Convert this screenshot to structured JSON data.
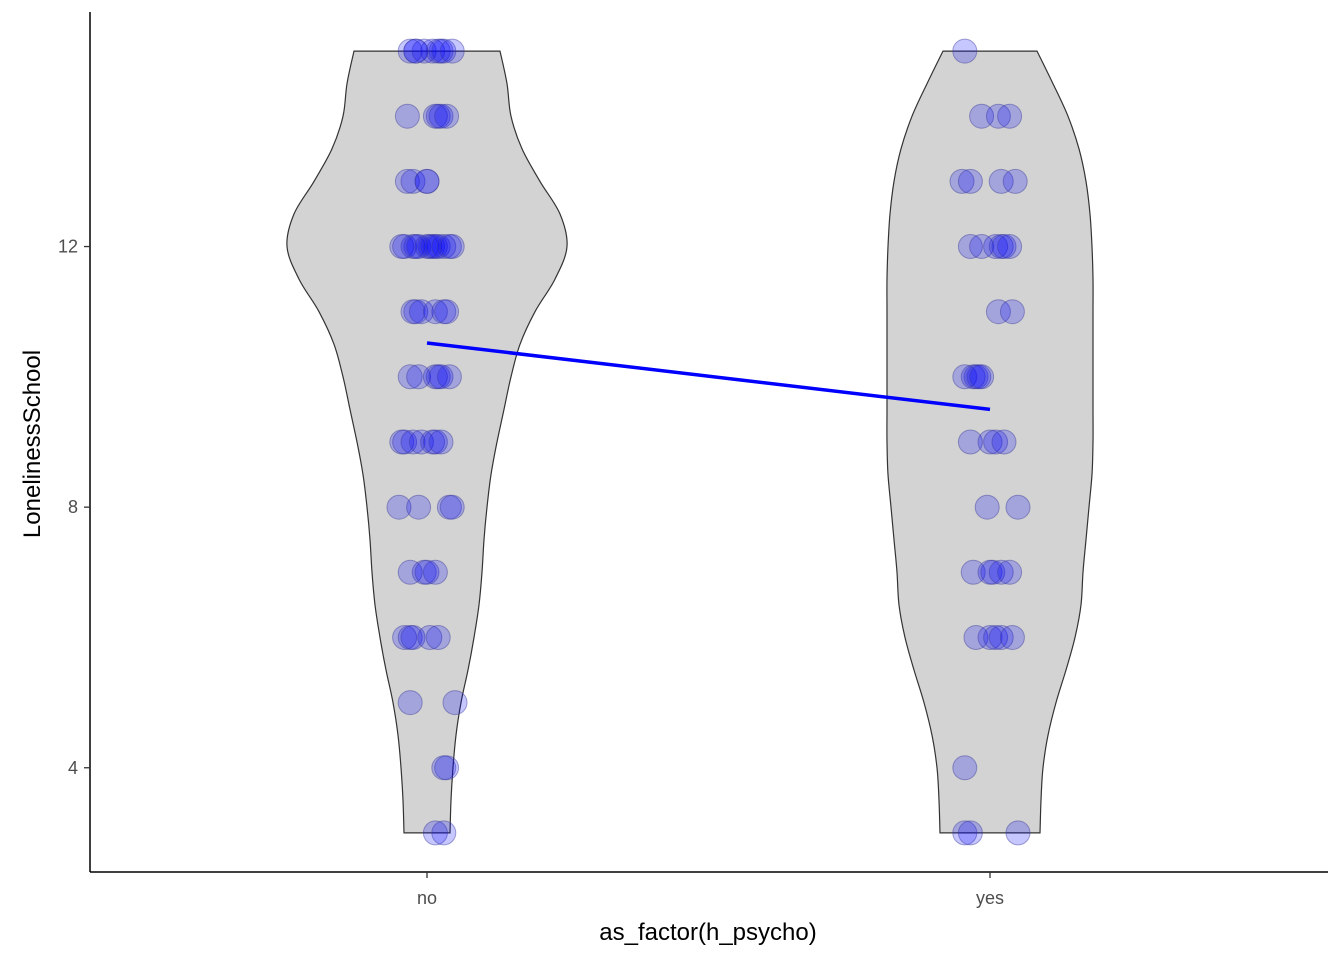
{
  "chart_data": {
    "type": "violin",
    "title": "",
    "xlabel": "as_factor(h_psycho)",
    "ylabel": "LonelinessSchool",
    "categories": [
      "no",
      "yes"
    ],
    "ylim": [
      2.4,
      15.6
    ],
    "yticks": [
      4,
      8,
      12
    ],
    "grid": false,
    "legend": "none",
    "colors": {
      "violin_fill": "#d3d3d3",
      "violin_stroke": "#333333",
      "points": "#0000ff",
      "trend_line": "#0000ff"
    },
    "violin_width": {
      "no": [
        [
          3.0,
          0.23
        ],
        [
          3.5,
          0.24
        ],
        [
          4.0,
          0.26
        ],
        [
          4.5,
          0.29
        ],
        [
          5.0,
          0.34
        ],
        [
          5.5,
          0.41
        ],
        [
          6.0,
          0.47
        ],
        [
          6.5,
          0.52
        ],
        [
          7.0,
          0.55
        ],
        [
          7.5,
          0.57
        ],
        [
          8.0,
          0.6
        ],
        [
          8.5,
          0.64
        ],
        [
          9.0,
          0.7
        ],
        [
          9.5,
          0.77
        ],
        [
          10.0,
          0.84
        ],
        [
          10.5,
          0.93
        ],
        [
          11.0,
          1.08
        ],
        [
          11.5,
          1.28
        ],
        [
          12.0,
          1.4
        ],
        [
          12.5,
          1.33
        ],
        [
          13.0,
          1.13
        ],
        [
          13.5,
          0.95
        ],
        [
          14.0,
          0.84
        ],
        [
          14.5,
          0.8
        ],
        [
          15.0,
          0.73
        ]
      ],
      "yes": [
        [
          3.0,
          0.5
        ],
        [
          3.5,
          0.51
        ],
        [
          4.0,
          0.53
        ],
        [
          4.5,
          0.58
        ],
        [
          5.0,
          0.66
        ],
        [
          5.5,
          0.76
        ],
        [
          6.0,
          0.85
        ],
        [
          6.5,
          0.91
        ],
        [
          7.0,
          0.93
        ],
        [
          7.5,
          0.96
        ],
        [
          8.0,
          0.99
        ],
        [
          8.5,
          1.02
        ],
        [
          9.0,
          1.03
        ],
        [
          9.5,
          1.03
        ],
        [
          10.0,
          1.03
        ],
        [
          10.5,
          1.03
        ],
        [
          11.0,
          1.03
        ],
        [
          11.5,
          1.03
        ],
        [
          12.0,
          1.02
        ],
        [
          12.5,
          1.0
        ],
        [
          13.0,
          0.96
        ],
        [
          13.5,
          0.89
        ],
        [
          14.0,
          0.78
        ],
        [
          14.5,
          0.63
        ],
        [
          15.0,
          0.47
        ]
      ]
    },
    "points": {
      "no": [
        [
          -0.06,
          15
        ],
        [
          -0.04,
          15
        ],
        [
          -0.01,
          15
        ],
        [
          0.02,
          15
        ],
        [
          0.04,
          15
        ],
        [
          0.05,
          15
        ],
        [
          0.06,
          15
        ],
        [
          0.09,
          15
        ],
        [
          -0.04,
          15
        ],
        [
          -0.07,
          14
        ],
        [
          0.03,
          14
        ],
        [
          0.04,
          14
        ],
        [
          0.05,
          14
        ],
        [
          0.07,
          14
        ],
        [
          -0.07,
          13
        ],
        [
          -0.05,
          13
        ],
        [
          0.0,
          13
        ],
        [
          0.0,
          13
        ],
        [
          -0.09,
          12
        ],
        [
          -0.08,
          12
        ],
        [
          -0.05,
          12
        ],
        [
          -0.04,
          12
        ],
        [
          -0.03,
          12
        ],
        [
          0.0,
          12
        ],
        [
          0.01,
          12
        ],
        [
          0.02,
          12
        ],
        [
          0.03,
          12
        ],
        [
          0.04,
          12
        ],
        [
          0.06,
          12
        ],
        [
          0.08,
          12
        ],
        [
          0.09,
          12
        ],
        [
          -0.05,
          11
        ],
        [
          -0.04,
          11
        ],
        [
          -0.02,
          11
        ],
        [
          0.03,
          11
        ],
        [
          0.06,
          11
        ],
        [
          0.07,
          11
        ],
        [
          -0.06,
          10
        ],
        [
          -0.03,
          10
        ],
        [
          0.03,
          10
        ],
        [
          0.04,
          10
        ],
        [
          0.05,
          10
        ],
        [
          0.08,
          10
        ],
        [
          -0.09,
          9
        ],
        [
          -0.08,
          9
        ],
        [
          -0.05,
          9
        ],
        [
          -0.02,
          9
        ],
        [
          0.02,
          9
        ],
        [
          0.03,
          9
        ],
        [
          0.05,
          9
        ],
        [
          -0.1,
          8
        ],
        [
          -0.03,
          8
        ],
        [
          0.08,
          8
        ],
        [
          0.09,
          8
        ],
        [
          -0.06,
          7
        ],
        [
          -0.01,
          7
        ],
        [
          0.0,
          7
        ],
        [
          0.03,
          7
        ],
        [
          -0.08,
          6
        ],
        [
          -0.06,
          6
        ],
        [
          -0.05,
          6
        ],
        [
          0.01,
          6
        ],
        [
          0.04,
          6
        ],
        [
          -0.06,
          5
        ],
        [
          0.1,
          5
        ],
        [
          0.06,
          4
        ],
        [
          0.07,
          4
        ],
        [
          0.03,
          3
        ],
        [
          0.06,
          3
        ]
      ],
      "yes": [
        [
          -0.09,
          15
        ],
        [
          -0.03,
          14
        ],
        [
          0.03,
          14
        ],
        [
          0.07,
          14
        ],
        [
          -0.1,
          13
        ],
        [
          -0.07,
          13
        ],
        [
          0.04,
          13
        ],
        [
          0.09,
          13
        ],
        [
          -0.07,
          12
        ],
        [
          -0.03,
          12
        ],
        [
          0.02,
          12
        ],
        [
          0.04,
          12
        ],
        [
          0.05,
          12
        ],
        [
          0.07,
          12
        ],
        [
          0.03,
          11
        ],
        [
          0.08,
          11
        ],
        [
          -0.09,
          10
        ],
        [
          -0.06,
          10
        ],
        [
          -0.05,
          10
        ],
        [
          -0.04,
          10
        ],
        [
          -0.03,
          10
        ],
        [
          -0.07,
          9
        ],
        [
          0.0,
          9
        ],
        [
          0.02,
          9
        ],
        [
          0.05,
          9
        ],
        [
          -0.01,
          8
        ],
        [
          0.1,
          8
        ],
        [
          -0.06,
          7
        ],
        [
          0.0,
          7
        ],
        [
          0.01,
          7
        ],
        [
          0.04,
          7
        ],
        [
          0.07,
          7
        ],
        [
          -0.05,
          6
        ],
        [
          0.0,
          6
        ],
        [
          0.02,
          6
        ],
        [
          0.04,
          6
        ],
        [
          0.08,
          6
        ],
        [
          -0.09,
          4
        ],
        [
          -0.09,
          3
        ],
        [
          -0.07,
          3
        ],
        [
          0.1,
          3
        ]
      ]
    },
    "trend_line": [
      {
        "x": "no",
        "y": 10.52
      },
      {
        "x": "yes",
        "y": 9.5
      }
    ]
  }
}
